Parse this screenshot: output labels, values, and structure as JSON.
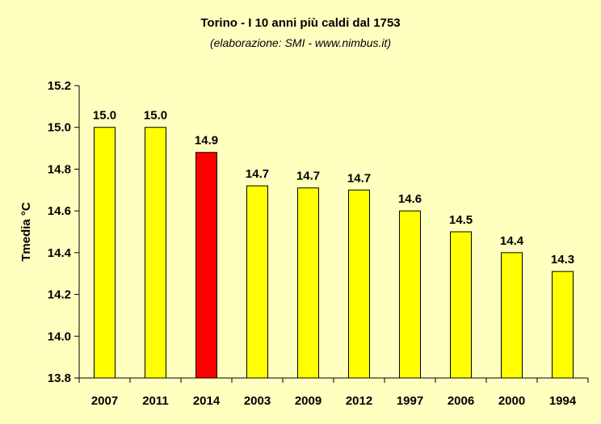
{
  "colors": {
    "background": "#FFFFC0",
    "bar_default": "#FFFF00",
    "bar_highlight": "#FF0000",
    "bar_stroke": "#000000"
  },
  "chart_data": {
    "type": "bar",
    "title": "Torino - I 10 anni più caldi dal 1753",
    "subtitle": "(elaborazione: SMI - www.nimbus.it)",
    "xlabel": "",
    "ylabel": "Tmedia °C",
    "ylim": [
      13.8,
      15.2
    ],
    "yticks": [
      "13.8",
      "14.0",
      "14.2",
      "14.4",
      "14.6",
      "14.8",
      "15.0",
      "15.2"
    ],
    "grid": false,
    "categories": [
      "2007",
      "2011",
      "2014",
      "2003",
      "2009",
      "2012",
      "1997",
      "2006",
      "2000",
      "1994"
    ],
    "values": [
      15.0,
      15.0,
      14.88,
      14.72,
      14.71,
      14.7,
      14.6,
      14.5,
      14.4,
      14.31
    ],
    "data_labels": [
      "15.0",
      "15.0",
      "14.9",
      "14.7",
      "14.7",
      "14.7",
      "14.6",
      "14.5",
      "14.4",
      "14.3"
    ],
    "highlight_category": "2014"
  }
}
